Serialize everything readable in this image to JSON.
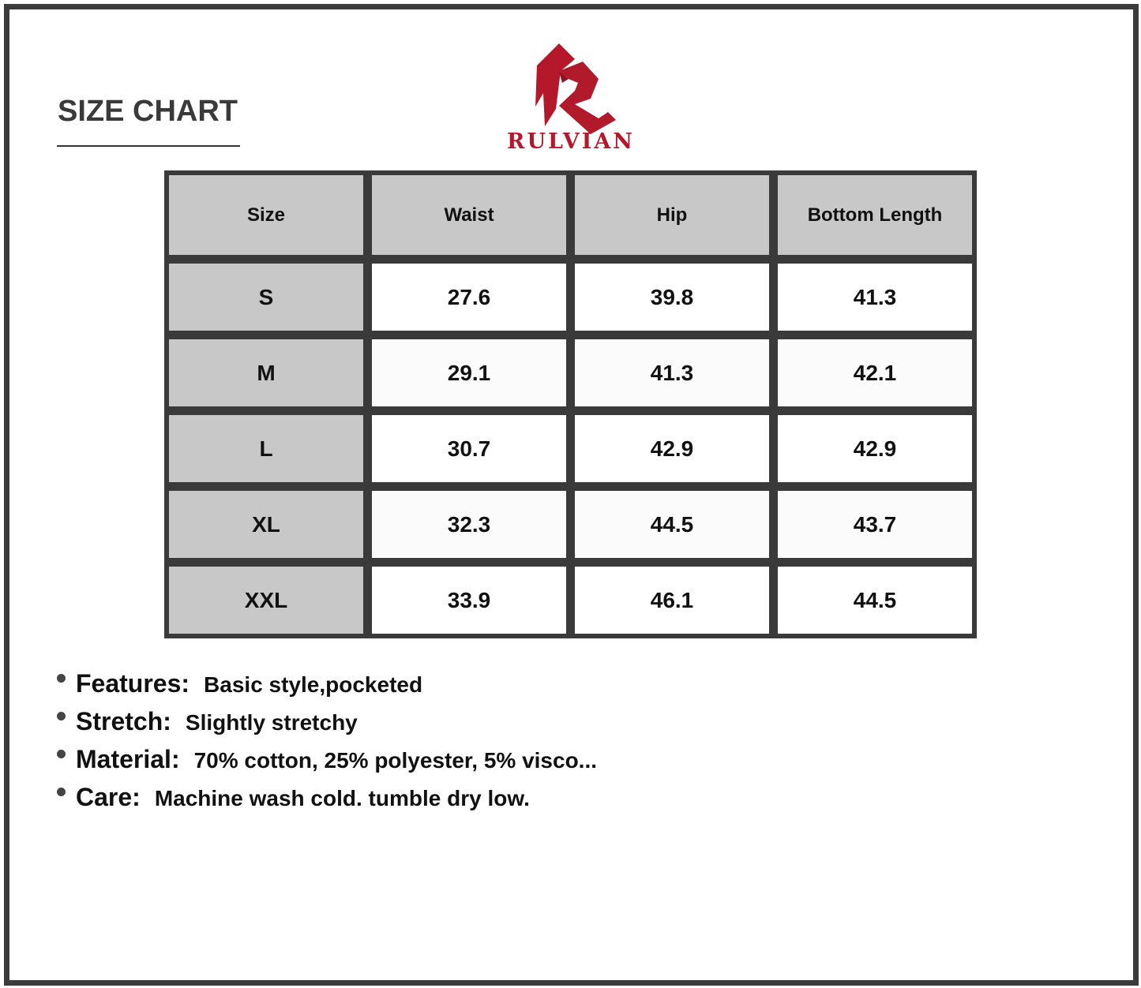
{
  "title": "SIZE CHART",
  "brand": {
    "name": "RULVIAN",
    "color": "#b5182a"
  },
  "table": {
    "headers": [
      "Size",
      "Waist",
      "Hip",
      "Bottom Length"
    ],
    "rows": [
      [
        "S",
        "27.6",
        "39.8",
        "41.3"
      ],
      [
        "M",
        "29.1",
        "41.3",
        "42.1"
      ],
      [
        "L",
        "30.7",
        "42.9",
        "42.9"
      ],
      [
        "XL",
        "32.3",
        "44.5",
        "43.7"
      ],
      [
        "XXL",
        "33.9",
        "46.1",
        "44.5"
      ]
    ]
  },
  "features": [
    {
      "label": "Features:",
      "value": "Basic style,pocketed"
    },
    {
      "label": "Stretch:",
      "value": "Slightly stretchy"
    },
    {
      "label": "Material:",
      "value": "70% cotton, 25% polyester, 5% visco..."
    },
    {
      "label": "Care:",
      "value": "Machine wash cold. tumble dry low."
    }
  ]
}
